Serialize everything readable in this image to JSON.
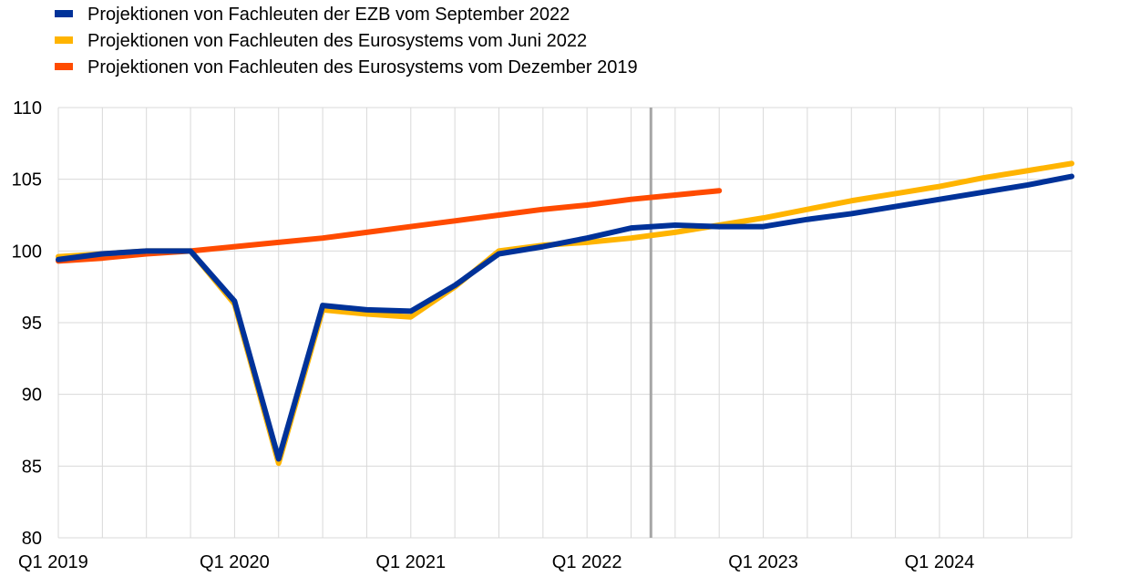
{
  "chart_data": {
    "type": "line",
    "title": "",
    "xlabel": "",
    "ylabel": "",
    "ylim": [
      80,
      110
    ],
    "yticks": [
      80,
      85,
      90,
      95,
      100,
      105,
      110
    ],
    "x": [
      "Q1 2019",
      "Q2 2019",
      "Q3 2019",
      "Q4 2019",
      "Q1 2020",
      "Q2 2020",
      "Q3 2020",
      "Q4 2020",
      "Q1 2021",
      "Q2 2021",
      "Q3 2021",
      "Q4 2021",
      "Q1 2022",
      "Q2 2022",
      "Q3 2022",
      "Q4 2022",
      "Q1 2023",
      "Q2 2023",
      "Q3 2023",
      "Q4 2023",
      "Q1 2024",
      "Q2 2024",
      "Q3 2024",
      "Q4 2024"
    ],
    "x_tick_labels": [
      "Q1 2019",
      "Q1 2020",
      "Q1 2021",
      "Q1 2022",
      "Q1 2023",
      "Q1 2024"
    ],
    "grid": true,
    "legend_position": "top-left",
    "vline": {
      "x": "Q2 2022",
      "color": "#A6A6A6"
    },
    "series": [
      {
        "name": "Projektionen von Fachleuten der EZB vom September 2022",
        "color": "#003299",
        "values": [
          99.4,
          99.8,
          100.0,
          100.0,
          96.5,
          85.5,
          96.2,
          95.9,
          95.8,
          97.6,
          99.8,
          100.3,
          100.9,
          101.6,
          101.8,
          101.7,
          101.7,
          102.2,
          102.6,
          103.1,
          103.6,
          104.1,
          104.6,
          105.2
        ]
      },
      {
        "name": "Projektionen von Fachleuten des Eurosystems vom Juni 2022",
        "color": "#FFB400",
        "values": [
          99.6,
          99.8,
          100.0,
          100.0,
          96.3,
          85.2,
          95.9,
          95.6,
          95.4,
          97.5,
          100.0,
          100.4,
          100.6,
          100.9,
          101.3,
          101.8,
          102.3,
          102.9,
          103.5,
          104.0,
          104.5,
          105.1,
          105.6,
          106.1
        ]
      },
      {
        "name": "Projektionen von Fachleuten des Eurosystems vom Dezember 2019",
        "color": "#FF4B00",
        "values": [
          99.3,
          99.5,
          99.8,
          100.0,
          100.3,
          100.6,
          100.9,
          101.3,
          101.7,
          102.1,
          102.5,
          102.9,
          103.2,
          103.6,
          103.9,
          104.2,
          null,
          null,
          null,
          null,
          null,
          null,
          null,
          null
        ]
      }
    ]
  }
}
